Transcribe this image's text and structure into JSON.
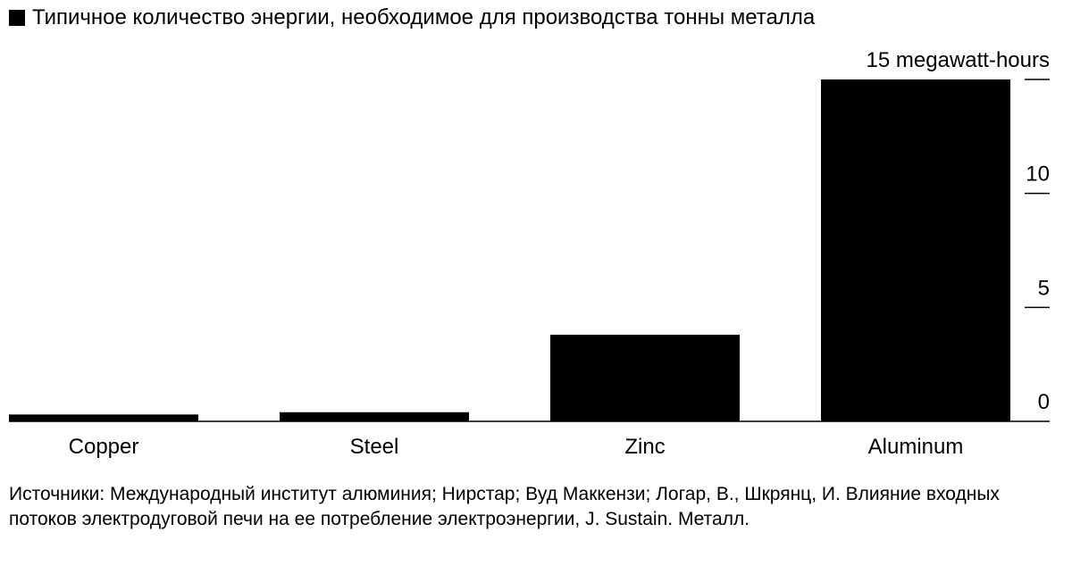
{
  "legend": {
    "label": "Типичное количество энергии, необходимое для производства тонны металла",
    "color": "#000000"
  },
  "chart_data": {
    "type": "bar",
    "categories": [
      "Copper",
      "Steel",
      "Zinc",
      "Aluminum"
    ],
    "values": [
      0.3,
      0.4,
      3.8,
      15
    ],
    "ylim": [
      0,
      15
    ],
    "yticks": [
      0,
      5,
      10,
      15
    ],
    "y_tick_labels": [
      "0",
      "5",
      "10",
      "15 megawatt-hours"
    ],
    "color": "#000000",
    "grid": false
  },
  "source": "Источники: Международный институт алюминия; Нирстар; Вуд Маккензи; Логар, В., Шкрянц, И. Влияние входных потоков электродуговой печи на ее потребление электроэнергии, J. Sustain. Металл."
}
